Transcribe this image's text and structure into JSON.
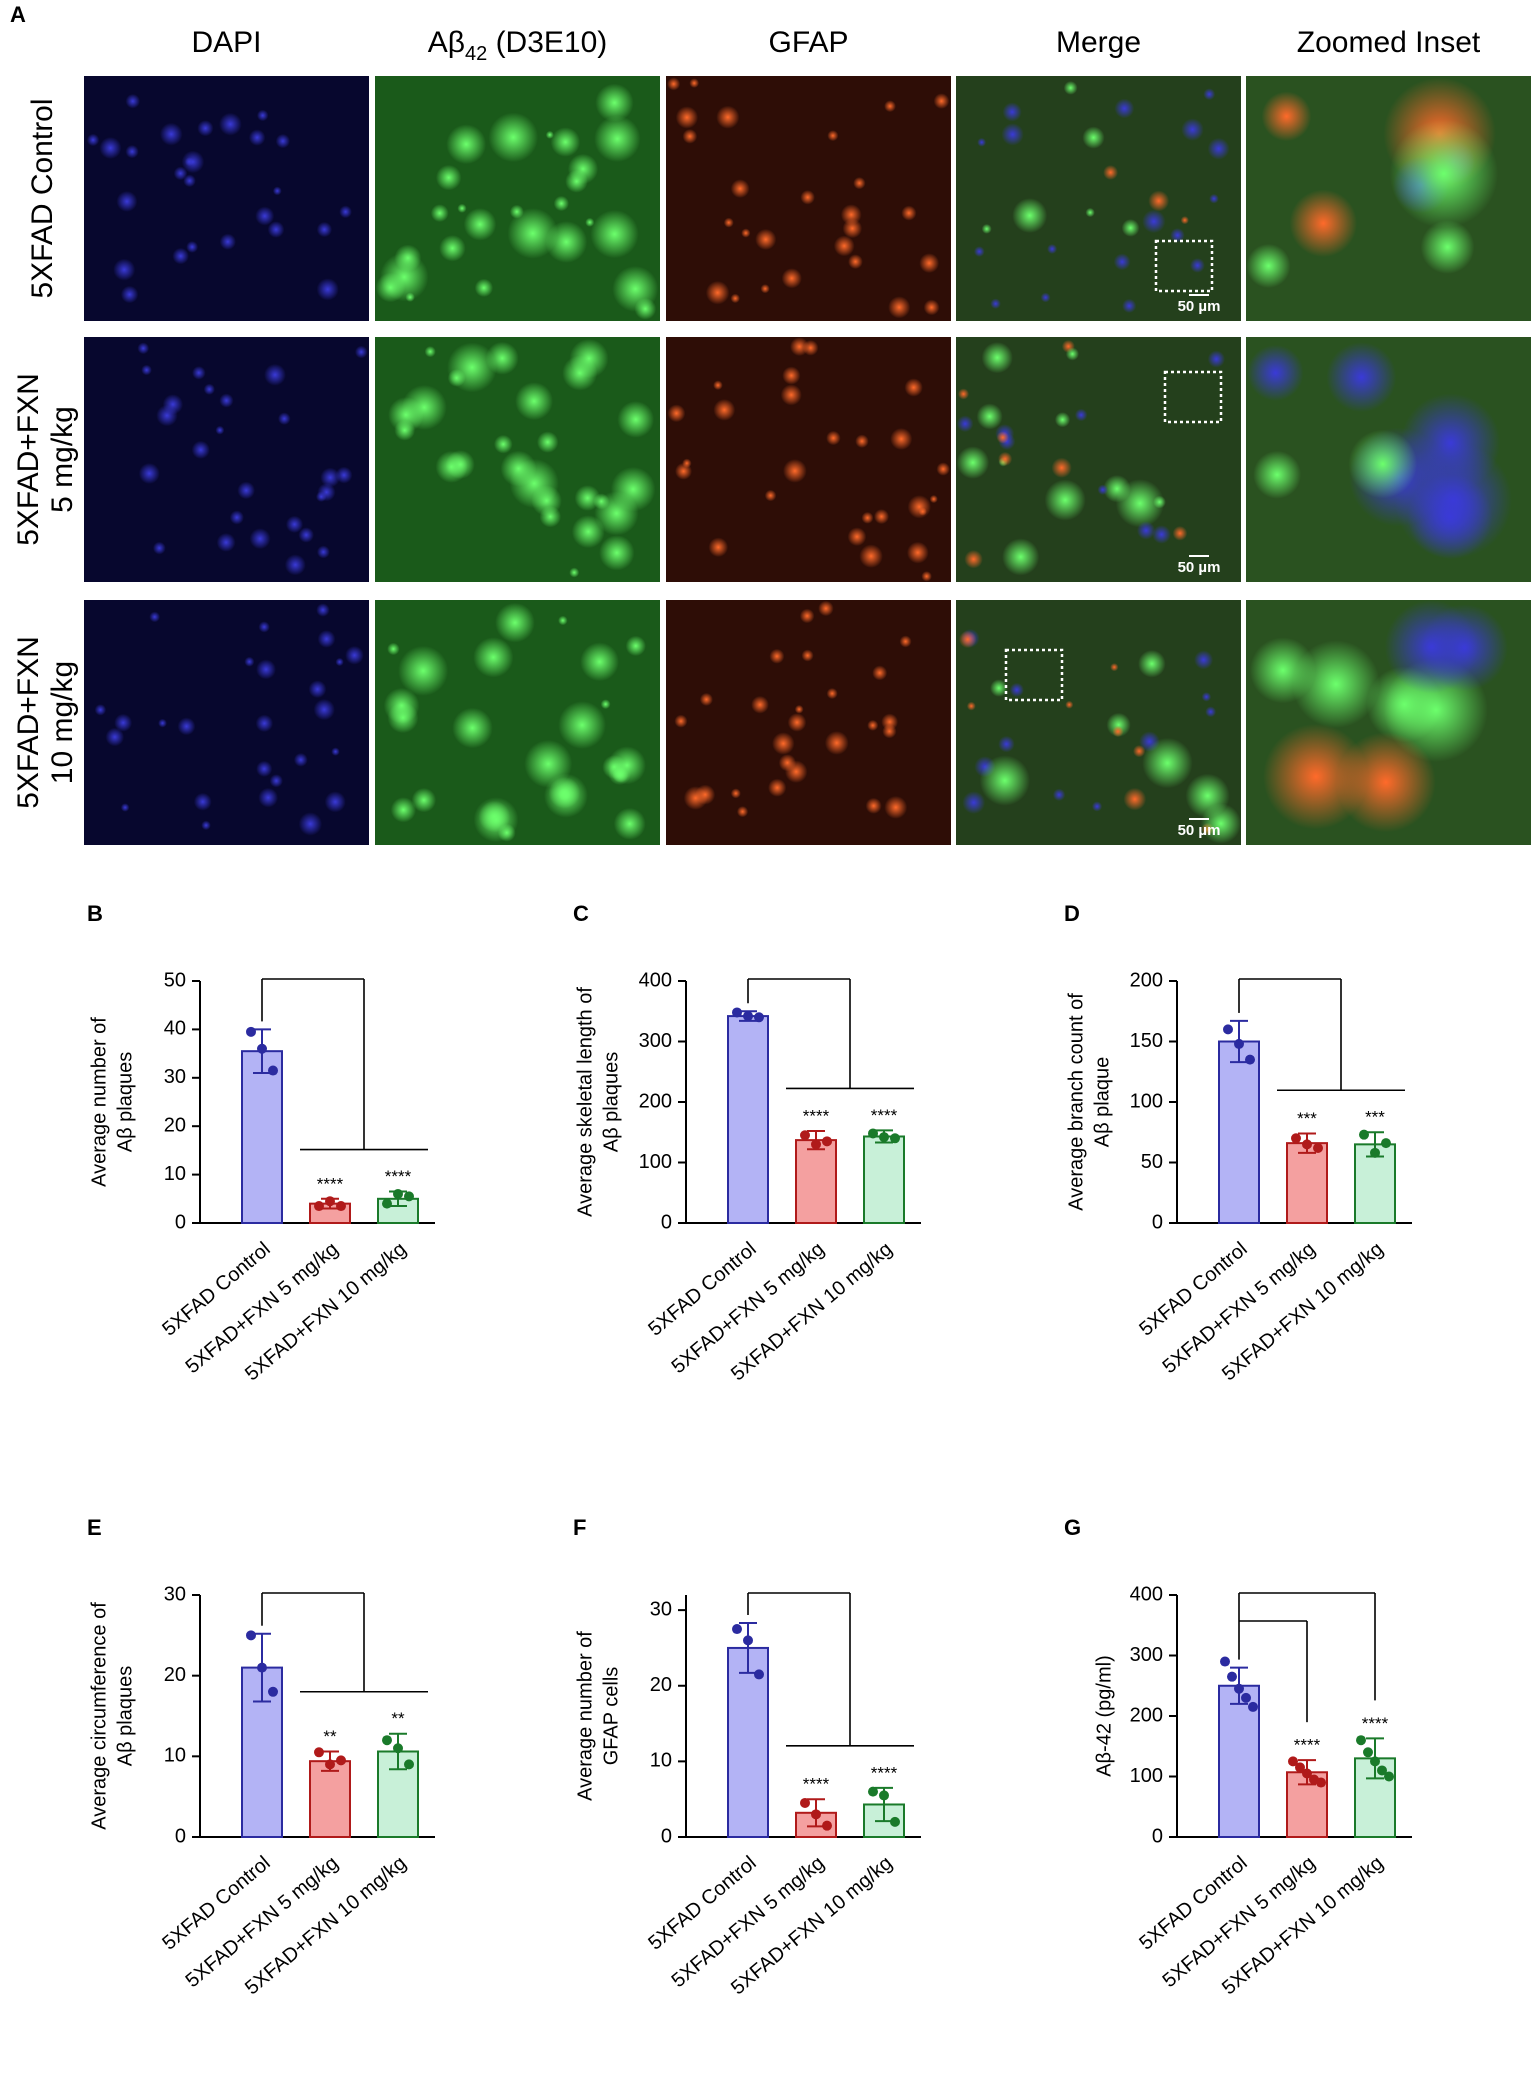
{
  "panel_a": {
    "label": "A",
    "columns": [
      "DAPI",
      {
        "main": "Aβ",
        "sub": "42",
        "tail": " (D3E10)"
      },
      "GFAP",
      "Merge",
      "Zoomed Inset"
    ],
    "rows": [
      [
        "5XFAD Control"
      ],
      [
        "5XFAD+FXN",
        "5 mg/kg"
      ],
      [
        "5XFAD+FXN",
        "10 mg/kg"
      ]
    ],
    "scale_bar": "50 µm"
  },
  "chart_data": [
    {
      "type": "bar",
      "panel": "B",
      "ylabel": [
        "Average number of",
        "Aβ plaques"
      ],
      "categories": [
        "5XFAD Control",
        "5XFAD+FXN 5 mg/kg",
        "5XFAD+FXN 10 mg/kg"
      ],
      "values": [
        35.5,
        4,
        5
      ],
      "errors": [
        4.5,
        1,
        1.5
      ],
      "points": [
        [
          39.5,
          36,
          31.5
        ],
        [
          3.5,
          4.5,
          3.5
        ],
        [
          4,
          6,
          5.5
        ]
      ],
      "annotations": [
        null,
        "****",
        "****"
      ],
      "comparison": "grouped",
      "colors": [
        "#b3b3f5",
        "#f4a0a0",
        "#c8f0d8"
      ],
      "edge_colors": [
        "#2b2ba0",
        "#b01a1a",
        "#1a7a2a"
      ],
      "ylim": [
        0,
        50
      ],
      "yticks": [
        0,
        10,
        20,
        30,
        40,
        50
      ]
    },
    {
      "type": "bar",
      "panel": "C",
      "ylabel": [
        "Average skeletal length of",
        "Aβ plaques"
      ],
      "categories": [
        "5XFAD Control",
        "5XFAD+FXN 5 mg/kg",
        "5XFAD+FXN 10 mg/kg"
      ],
      "values": [
        342,
        137,
        143
      ],
      "errors": [
        8,
        15,
        10
      ],
      "points": [
        [
          348,
          342,
          340
        ],
        [
          145,
          130,
          135
        ],
        [
          148,
          142,
          140
        ]
      ],
      "annotations": [
        null,
        "****",
        "****"
      ],
      "comparison": "grouped",
      "colors": [
        "#b3b3f5",
        "#f4a0a0",
        "#c8f0d8"
      ],
      "edge_colors": [
        "#2b2ba0",
        "#b01a1a",
        "#1a7a2a"
      ],
      "ylim": [
        0,
        400
      ],
      "yticks": [
        0,
        100,
        200,
        300,
        400
      ]
    },
    {
      "type": "bar",
      "panel": "D",
      "ylabel": [
        "Average branch count of",
        "Aβ plaque"
      ],
      "categories": [
        "5XFAD Control",
        "5XFAD+FXN 5 mg/kg",
        "5XFAD+FXN 10 mg/kg"
      ],
      "values": [
        150,
        66,
        65
      ],
      "errors": [
        17,
        8,
        10
      ],
      "points": [
        [
          160,
          148,
          135
        ],
        [
          70,
          65,
          62
        ],
        [
          73,
          58,
          66
        ]
      ],
      "annotations": [
        null,
        "***",
        "***"
      ],
      "comparison": "grouped",
      "colors": [
        "#b3b3f5",
        "#f4a0a0",
        "#c8f0d8"
      ],
      "edge_colors": [
        "#2b2ba0",
        "#b01a1a",
        "#1a7a2a"
      ],
      "ylim": [
        0,
        200
      ],
      "yticks": [
        0,
        50,
        100,
        150,
        200
      ]
    },
    {
      "type": "bar",
      "panel": "E",
      "ylabel": [
        "Average circumference of",
        "Aβ plaques"
      ],
      "categories": [
        "5XFAD Control",
        "5XFAD+FXN 5 mg/kg",
        "5XFAD+FXN 10 mg/kg"
      ],
      "values": [
        21,
        9.4,
        10.6
      ],
      "errors": [
        4.2,
        1.2,
        2.2
      ],
      "points": [
        [
          25,
          21,
          18
        ],
        [
          10.5,
          9,
          9.5
        ],
        [
          12,
          11,
          9
        ]
      ],
      "annotations": [
        null,
        "**",
        "**"
      ],
      "comparison": "grouped",
      "colors": [
        "#b3b3f5",
        "#f4a0a0",
        "#c8f0d8"
      ],
      "edge_colors": [
        "#2b2ba0",
        "#b01a1a",
        "#1a7a2a"
      ],
      "ylim": [
        0,
        30
      ],
      "yticks": [
        0,
        10,
        20,
        30
      ]
    },
    {
      "type": "bar",
      "panel": "F",
      "ylabel": [
        "Average number of",
        "GFAP cells"
      ],
      "categories": [
        "5XFAD Control",
        "5XFAD+FXN 5 mg/kg",
        "5XFAD+FXN 10 mg/kg"
      ],
      "values": [
        25,
        3.2,
        4.3
      ],
      "errors": [
        3.3,
        1.8,
        2.2
      ],
      "points": [
        [
          27.5,
          26,
          21.5
        ],
        [
          4.5,
          3,
          1.5
        ],
        [
          6,
          5.5,
          2
        ]
      ],
      "annotations": [
        null,
        "****",
        "****"
      ],
      "comparison": "grouped",
      "colors": [
        "#b3b3f5",
        "#f4a0a0",
        "#c8f0d8"
      ],
      "edge_colors": [
        "#2b2ba0",
        "#b01a1a",
        "#1a7a2a"
      ],
      "ylim": [
        0,
        32
      ],
      "yticks": [
        0,
        10,
        20,
        30
      ]
    },
    {
      "type": "bar",
      "panel": "G",
      "ylabel": [
        "Aβ-42 (pg/ml)"
      ],
      "categories": [
        "5XFAD Control",
        "5XFAD+FXN 5 mg/kg",
        "5XFAD+FXN 10 mg/kg"
      ],
      "values": [
        250,
        107,
        130
      ],
      "errors": [
        30,
        20,
        33
      ],
      "points": [
        [
          290,
          265,
          245,
          230,
          215
        ],
        [
          125,
          115,
          105,
          95,
          90
        ],
        [
          160,
          140,
          125,
          110,
          100
        ]
      ],
      "annotations": [
        null,
        "****",
        "****"
      ],
      "comparison": "pairwise",
      "colors": [
        "#b3b3f5",
        "#f4a0a0",
        "#c8f0d8"
      ],
      "edge_colors": [
        "#2b2ba0",
        "#b01a1a",
        "#1a7a2a"
      ],
      "ylim": [
        0,
        400
      ],
      "yticks": [
        0,
        100,
        200,
        300,
        400
      ]
    }
  ]
}
